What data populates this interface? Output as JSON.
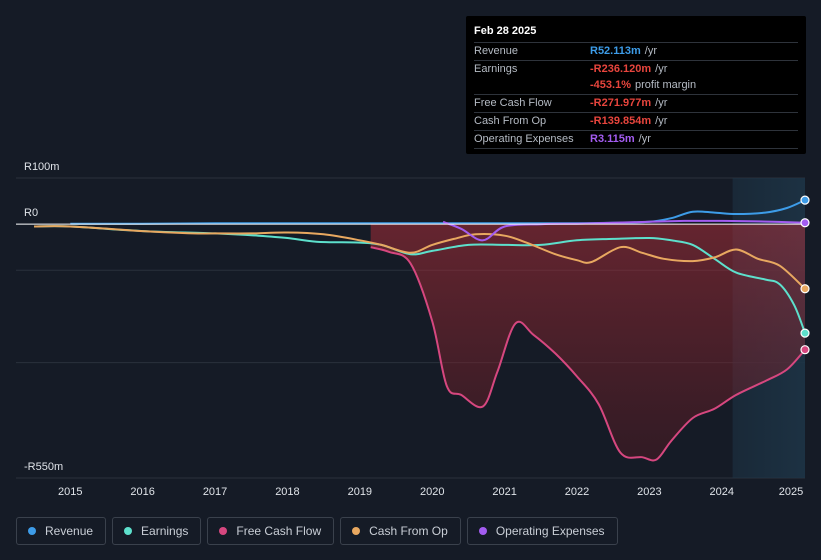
{
  "tooltip": {
    "date": "Feb 28 2025",
    "rows": [
      {
        "label": "Revenue",
        "value": "R52.113m",
        "unit": "/yr",
        "color": "#3d9ce8"
      },
      {
        "label": "Earnings",
        "value": "-R236.120m",
        "unit": "/yr",
        "color": "#e8453d"
      },
      {
        "label": "",
        "value": "-453.1%",
        "unit": "profit margin",
        "color": "#e8453d"
      },
      {
        "label": "Free Cash Flow",
        "value": "-R271.977m",
        "unit": "/yr",
        "color": "#e8453d"
      },
      {
        "label": "Cash From Op",
        "value": "-R139.854m",
        "unit": "/yr",
        "color": "#e8453d"
      },
      {
        "label": "Operating Expenses",
        "value": "R3.115m",
        "unit": "/yr",
        "color": "#a35cf0"
      }
    ]
  },
  "legend": [
    {
      "label": "Revenue",
      "color": "#3d9ce8"
    },
    {
      "label": "Earnings",
      "color": "#5de0cc"
    },
    {
      "label": "Free Cash Flow",
      "color": "#d6477f"
    },
    {
      "label": "Cash From Op",
      "color": "#e8a860"
    },
    {
      "label": "Operating Expenses",
      "color": "#a35cf0"
    }
  ],
  "chart_data": {
    "type": "line",
    "title": "",
    "xlabel": "",
    "ylabel": "",
    "y_axis_labels": [
      "R100m",
      "R0",
      "-R550m"
    ],
    "ylim": [
      -550,
      100
    ],
    "xlim": [
      2014.25,
      2025.15
    ],
    "x_ticks": [
      "2015",
      "2016",
      "2017",
      "2018",
      "2019",
      "2020",
      "2021",
      "2022",
      "2023",
      "2024",
      "2025"
    ],
    "x_tick_values": [
      2015,
      2016,
      2017,
      2018,
      2019,
      2020,
      2021,
      2022,
      2023,
      2024,
      2025
    ],
    "forecast_start": 2024.15,
    "series": [
      {
        "name": "Revenue",
        "color": "#3d9ce8",
        "x": [
          2015,
          2016,
          2017,
          2018,
          2019,
          2020,
          2021,
          2022,
          2022.5,
          2023,
          2023.3,
          2023.6,
          2023.9,
          2024.2,
          2024.6,
          2024.9,
          2025.15
        ],
        "values": [
          1,
          1,
          2,
          2,
          2,
          2,
          2,
          2,
          3,
          5,
          13,
          27,
          25,
          22,
          25,
          35,
          52.1
        ]
      },
      {
        "name": "Earnings",
        "color": "#5de0cc",
        "x": [
          2014.5,
          2015,
          2016,
          2017,
          2017.6,
          2018,
          2018.4,
          2019,
          2019.3,
          2019.7,
          2020,
          2020.5,
          2021,
          2021.5,
          2022,
          2022.5,
          2023,
          2023.3,
          2023.6,
          2023.9,
          2024.2,
          2024.6,
          2024.8,
          2025,
          2025.15
        ],
        "values": [
          -5,
          -5,
          -15,
          -20,
          -25,
          -30,
          -38,
          -40,
          -45,
          -65,
          -58,
          -45,
          -45,
          -45,
          -35,
          -32,
          -30,
          -35,
          -45,
          -75,
          -105,
          -120,
          -130,
          -175,
          -236.1
        ]
      },
      {
        "name": "Free Cash Flow",
        "color": "#d6477f",
        "x": [
          2019.15,
          2019.4,
          2019.7,
          2020,
          2020.2,
          2020.4,
          2020.7,
          2020.9,
          2021.15,
          2021.4,
          2021.7,
          2022,
          2022.3,
          2022.6,
          2022.9,
          2023.1,
          2023.3,
          2023.6,
          2023.9,
          2024.2,
          2024.6,
          2024.9,
          2025.15
        ],
        "values": [
          -50,
          -60,
          -85,
          -210,
          -350,
          -370,
          -395,
          -320,
          -215,
          -240,
          -280,
          -330,
          -390,
          -495,
          -505,
          -510,
          -470,
          -420,
          -400,
          -370,
          -340,
          -315,
          -272
        ]
      },
      {
        "name": "Cash From Op",
        "color": "#e8a860",
        "x": [
          2014.5,
          2015,
          2016,
          2016.7,
          2017,
          2017.5,
          2018,
          2018.5,
          2019,
          2019.3,
          2019.7,
          2020,
          2020.3,
          2020.6,
          2021,
          2021.3,
          2021.7,
          2022,
          2022.2,
          2022.6,
          2022.9,
          2023.2,
          2023.6,
          2023.9,
          2024.2,
          2024.5,
          2024.8,
          2025.15
        ],
        "values": [
          -5,
          -5,
          -15,
          -20,
          -20,
          -20,
          -18,
          -22,
          -35,
          -45,
          -62,
          -45,
          -32,
          -22,
          -25,
          -40,
          -65,
          -78,
          -82,
          -50,
          -62,
          -75,
          -80,
          -72,
          -55,
          -75,
          -90,
          -140
        ]
      },
      {
        "name": "Operating Expenses",
        "color": "#a35cf0",
        "x": [
          2020.15,
          2020.4,
          2020.7,
          2021,
          2021.5,
          2022,
          2022.5,
          2023,
          2023.5,
          2024,
          2024.5,
          2025.15
        ],
        "values": [
          5,
          -10,
          -35,
          -5,
          0,
          1,
          3,
          5,
          7,
          7,
          6,
          3.1
        ]
      }
    ]
  }
}
